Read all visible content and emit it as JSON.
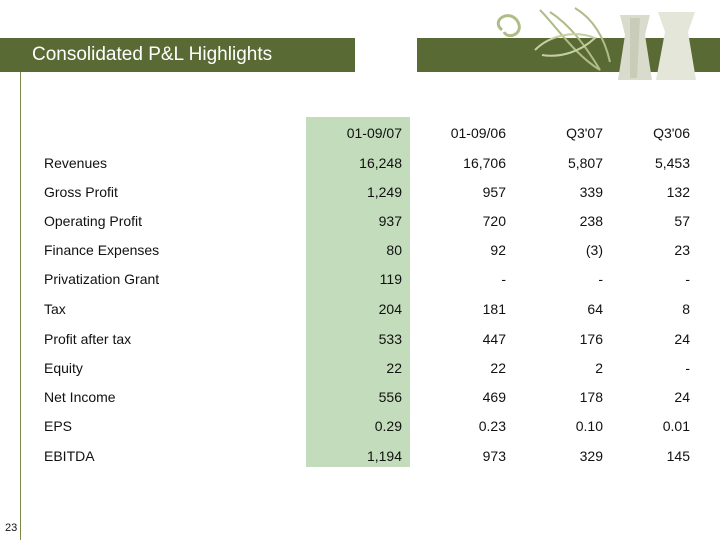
{
  "title": "Consolidated P&L Highlights",
  "page_number": "23",
  "accent_colors": {
    "title_bar": "#5a6a34",
    "highlight_column": "#c3dcbb",
    "decoration": "#b0bc88"
  },
  "decoration_icon": "swirl-and-vase-ornament",
  "table": {
    "columns": [
      "01-09/07",
      "01-09/06",
      "Q3'07",
      "Q3'06"
    ],
    "rows": [
      {
        "label": "Revenues",
        "values": [
          "16,248",
          "16,706",
          "5,807",
          "5,453"
        ]
      },
      {
        "label": "Gross Profit",
        "values": [
          "1,249",
          "957",
          "339",
          "132"
        ]
      },
      {
        "label": "Operating Profit",
        "values": [
          "937",
          "720",
          "238",
          "57"
        ]
      },
      {
        "label": "Finance Expenses",
        "values": [
          "80",
          "92",
          "(3)",
          "23"
        ]
      },
      {
        "label": "Privatization Grant",
        "values": [
          "119",
          "-",
          "-",
          "-"
        ]
      },
      {
        "label": "Tax",
        "values": [
          "204",
          "181",
          "64",
          "8"
        ]
      },
      {
        "label": "Profit after tax",
        "values": [
          "533",
          "447",
          "176",
          "24"
        ]
      },
      {
        "label": "Equity",
        "values": [
          "22",
          "22",
          "2",
          "-"
        ]
      },
      {
        "label": "Net Income",
        "values": [
          "556",
          "469",
          "178",
          "24"
        ]
      },
      {
        "label": "EPS",
        "values": [
          "0.29",
          "0.23",
          "0.10",
          "0.01"
        ]
      },
      {
        "label": "EBITDA",
        "values": [
          "1,194",
          "973",
          "329",
          "145"
        ]
      }
    ]
  }
}
